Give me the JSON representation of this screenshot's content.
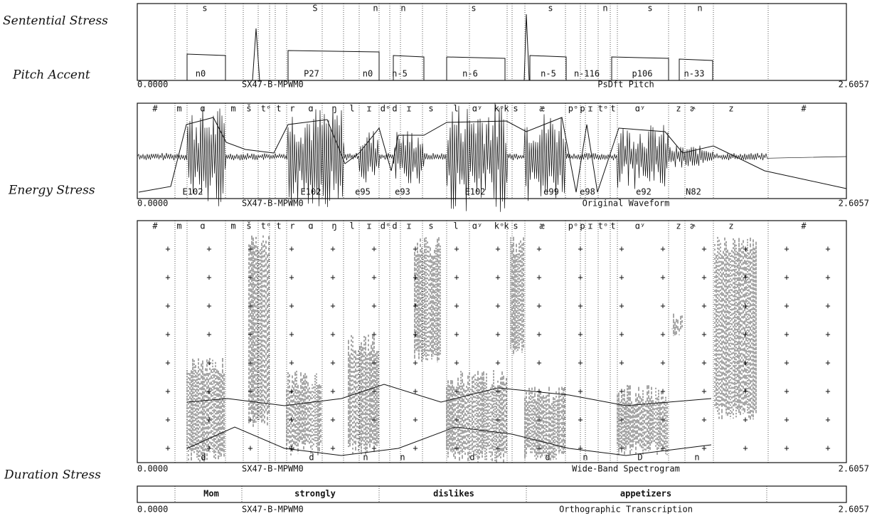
{
  "annotations": {
    "sentential_stress": "Sentential Stress",
    "pitch_accent": "Pitch Accent",
    "energy_stress": "Energy Stress",
    "duration_stress": "Duration Stress"
  },
  "panels": [
    {
      "top_labels": [
        "s",
        "S",
        "n",
        "n",
        "s",
        "s",
        "n",
        "s",
        "n"
      ],
      "bottom_labels": [
        "n0",
        "P27",
        "n0",
        "n-5",
        "n-6",
        "n-5",
        "n-116",
        "p106",
        "n-33"
      ],
      "start": "0.0000",
      "file": "SX47-B-MPWM0",
      "title": "PsDft Pitch",
      "end": "2.6057"
    },
    {
      "top_labels": [
        "#",
        "m",
        "ɑ",
        "m",
        "š",
        "tᵒ",
        "t",
        "r",
        "ɑ",
        "ŋ",
        "l",
        "ɪ",
        "dᵒ",
        "d",
        "ɪ",
        "s",
        "l",
        "ɑʸ",
        "kᵒ",
        "k",
        "s",
        "æ",
        "pᵒ",
        "p",
        "ɪ",
        "tᵒ",
        "t",
        "ɑʸ",
        "z",
        "ɚ",
        "z",
        "#"
      ],
      "bottom_labels": [
        "E102",
        "E102",
        "e95",
        "e93",
        "E102",
        "e99",
        "e98",
        "e92",
        "N82"
      ],
      "start": "0.0000",
      "file": "SX47-B-MPWM0",
      "title": "Original Waveform",
      "end": "2.6057"
    },
    {
      "top_labels": [
        "#",
        "m",
        "ɑ",
        "m",
        "š",
        "tᵒ",
        "t",
        "r",
        "ɑ",
        "ŋ",
        "l",
        "ɪ",
        "dᵒ",
        "d",
        "ɪ",
        "s",
        "l",
        "ɑʸ",
        "kᵒ",
        "k",
        "s",
        "æ",
        "pᵒ",
        "p",
        "ɪ",
        "tᵒ",
        "t",
        "ɑʸ",
        "z",
        "ɚ",
        "z",
        "#"
      ],
      "bottom_labels": [
        "d",
        "d",
        "n",
        "n",
        "d",
        "d",
        "n",
        "D",
        "n"
      ],
      "start": "0.0000",
      "file": "SX47-B-MPWM0",
      "title": "Wide-Band Spectrogram",
      "end": "2.6057"
    },
    {
      "top_labels": [
        "Mom",
        "strongly",
        "dislikes",
        "appetizers"
      ],
      "start": "0.0000",
      "file": "SX47-B-MPWM0",
      "title": "Orthographic Transcription",
      "end": "2.6057"
    }
  ]
}
